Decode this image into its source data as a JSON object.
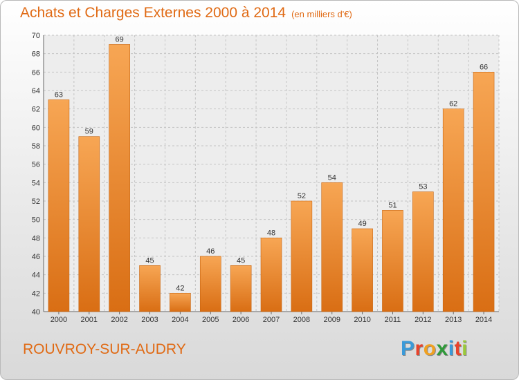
{
  "chart_data": {
    "type": "bar",
    "title": "Achats et Charges Externes 2000 à 2014",
    "subtitle": "(en milliers d'€)",
    "categories": [
      "2000",
      "2001",
      "2002",
      "2003",
      "2004",
      "2005",
      "2006",
      "2007",
      "2008",
      "2009",
      "2010",
      "2011",
      "2012",
      "2013",
      "2014"
    ],
    "values": [
      63,
      59,
      69,
      45,
      42,
      46,
      45,
      48,
      52,
      54,
      49,
      51,
      53,
      62,
      66
    ],
    "ylim": [
      40,
      70
    ],
    "yticks": [
      40,
      42,
      44,
      46,
      48,
      50,
      52,
      54,
      56,
      58,
      60,
      62,
      64,
      66,
      68,
      70
    ],
    "grid": true,
    "legend": "none",
    "colors": {
      "bar_light": "#f7a654",
      "bar_dark": "#d96e14",
      "text_accent": "#e06a14"
    }
  },
  "footer": {
    "commune": "ROUVROY-SUR-AUDRY",
    "logo_letters": [
      {
        "ch": "P",
        "color": "#3a9ad9"
      },
      {
        "ch": "r",
        "color": "#e8432b"
      },
      {
        "ch": "o",
        "color": "#f0a020"
      },
      {
        "ch": "x",
        "color": "#2f9a3a"
      },
      {
        "ch": "i",
        "color": "#3a9ad9"
      },
      {
        "ch": "t",
        "color": "#e8432b"
      },
      {
        "ch": "i",
        "color": "#9bc93a"
      }
    ]
  }
}
